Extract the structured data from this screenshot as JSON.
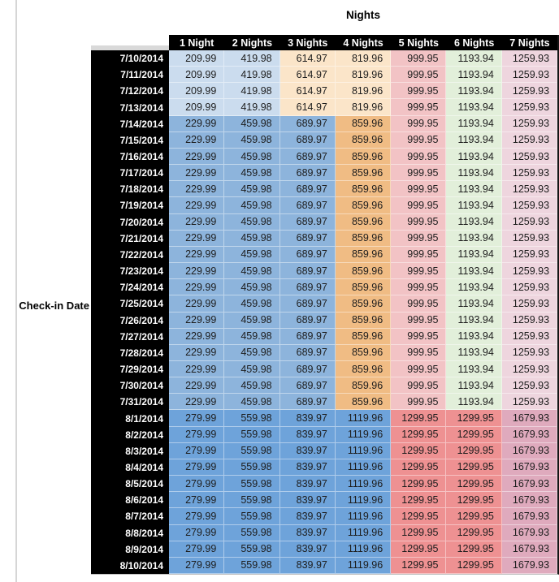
{
  "chart_data": {
    "type": "table",
    "title": "Nights",
    "row_axis_label": "Check-in Date",
    "header_bg": "#000000",
    "header_text_color": "#ffffff",
    "columns": [
      "1 Night",
      "2 Nights",
      "3 Nights",
      "4 Nights",
      "5 Nights",
      "6 Nights",
      "7 Nights"
    ],
    "colors": {
      "paleBlue": "#cbdcee",
      "medBlue": "#8db4dc",
      "darkBlue": "#6ea3da",
      "paleOrange": "#fbe5c9",
      "medOrange": "#f0bc84",
      "palePink": "#f2c3c5",
      "paleGreen": "#e2efda",
      "paleMauve": "#eed5de",
      "medRed": "#ee9192",
      "medMauve": "#dfaabd"
    },
    "schemes": {
      "early_july": [
        "paleBlue",
        "paleBlue",
        "paleOrange",
        "paleOrange",
        "palePink",
        "paleGreen",
        "paleMauve"
      ],
      "mid_july": [
        "medBlue",
        "medBlue",
        "medBlue",
        "medOrange",
        "palePink",
        "paleGreen",
        "paleMauve"
      ],
      "august": [
        "darkBlue",
        "darkBlue",
        "darkBlue",
        "darkBlue",
        "medRed",
        "medRed",
        "medMauve"
      ]
    },
    "rows": [
      {
        "date": "7/10/2014",
        "scheme": "early_july",
        "values": [
          "209.99",
          "419.98",
          "614.97",
          "819.96",
          "999.95",
          "1193.94",
          "1259.93"
        ]
      },
      {
        "date": "7/11/2014",
        "scheme": "early_july",
        "values": [
          "209.99",
          "419.98",
          "614.97",
          "819.96",
          "999.95",
          "1193.94",
          "1259.93"
        ]
      },
      {
        "date": "7/12/2014",
        "scheme": "early_july",
        "values": [
          "209.99",
          "419.98",
          "614.97",
          "819.96",
          "999.95",
          "1193.94",
          "1259.93"
        ]
      },
      {
        "date": "7/13/2014",
        "scheme": "early_july",
        "values": [
          "209.99",
          "419.98",
          "614.97",
          "819.96",
          "999.95",
          "1193.94",
          "1259.93"
        ]
      },
      {
        "date": "7/14/2014",
        "scheme": "mid_july",
        "values": [
          "229.99",
          "459.98",
          "689.97",
          "859.96",
          "999.95",
          "1193.94",
          "1259.93"
        ]
      },
      {
        "date": "7/15/2014",
        "scheme": "mid_july",
        "values": [
          "229.99",
          "459.98",
          "689.97",
          "859.96",
          "999.95",
          "1193.94",
          "1259.93"
        ]
      },
      {
        "date": "7/16/2014",
        "scheme": "mid_july",
        "values": [
          "229.99",
          "459.98",
          "689.97",
          "859.96",
          "999.95",
          "1193.94",
          "1259.93"
        ]
      },
      {
        "date": "7/17/2014",
        "scheme": "mid_july",
        "values": [
          "229.99",
          "459.98",
          "689.97",
          "859.96",
          "999.95",
          "1193.94",
          "1259.93"
        ]
      },
      {
        "date": "7/18/2014",
        "scheme": "mid_july",
        "values": [
          "229.99",
          "459.98",
          "689.97",
          "859.96",
          "999.95",
          "1193.94",
          "1259.93"
        ]
      },
      {
        "date": "7/19/2014",
        "scheme": "mid_july",
        "values": [
          "229.99",
          "459.98",
          "689.97",
          "859.96",
          "999.95",
          "1193.94",
          "1259.93"
        ]
      },
      {
        "date": "7/20/2014",
        "scheme": "mid_july",
        "values": [
          "229.99",
          "459.98",
          "689.97",
          "859.96",
          "999.95",
          "1193.94",
          "1259.93"
        ]
      },
      {
        "date": "7/21/2014",
        "scheme": "mid_july",
        "values": [
          "229.99",
          "459.98",
          "689.97",
          "859.96",
          "999.95",
          "1193.94",
          "1259.93"
        ]
      },
      {
        "date": "7/22/2014",
        "scheme": "mid_july",
        "values": [
          "229.99",
          "459.98",
          "689.97",
          "859.96",
          "999.95",
          "1193.94",
          "1259.93"
        ]
      },
      {
        "date": "7/23/2014",
        "scheme": "mid_july",
        "values": [
          "229.99",
          "459.98",
          "689.97",
          "859.96",
          "999.95",
          "1193.94",
          "1259.93"
        ]
      },
      {
        "date": "7/24/2014",
        "scheme": "mid_july",
        "values": [
          "229.99",
          "459.98",
          "689.97",
          "859.96",
          "999.95",
          "1193.94",
          "1259.93"
        ]
      },
      {
        "date": "7/25/2014",
        "scheme": "mid_july",
        "values": [
          "229.99",
          "459.98",
          "689.97",
          "859.96",
          "999.95",
          "1193.94",
          "1259.93"
        ]
      },
      {
        "date": "7/26/2014",
        "scheme": "mid_july",
        "values": [
          "229.99",
          "459.98",
          "689.97",
          "859.96",
          "999.95",
          "1193.94",
          "1259.93"
        ]
      },
      {
        "date": "7/27/2014",
        "scheme": "mid_july",
        "values": [
          "229.99",
          "459.98",
          "689.97",
          "859.96",
          "999.95",
          "1193.94",
          "1259.93"
        ]
      },
      {
        "date": "7/28/2014",
        "scheme": "mid_july",
        "values": [
          "229.99",
          "459.98",
          "689.97",
          "859.96",
          "999.95",
          "1193.94",
          "1259.93"
        ]
      },
      {
        "date": "7/29/2014",
        "scheme": "mid_july",
        "values": [
          "229.99",
          "459.98",
          "689.97",
          "859.96",
          "999.95",
          "1193.94",
          "1259.93"
        ]
      },
      {
        "date": "7/30/2014",
        "scheme": "mid_july",
        "values": [
          "229.99",
          "459.98",
          "689.97",
          "859.96",
          "999.95",
          "1193.94",
          "1259.93"
        ]
      },
      {
        "date": "7/31/2014",
        "scheme": "mid_july",
        "values": [
          "229.99",
          "459.98",
          "689.97",
          "859.96",
          "999.95",
          "1193.94",
          "1259.93"
        ]
      },
      {
        "date": "8/1/2014",
        "scheme": "august",
        "values": [
          "279.99",
          "559.98",
          "839.97",
          "1119.96",
          "1299.95",
          "1299.95",
          "1679.93"
        ]
      },
      {
        "date": "8/2/2014",
        "scheme": "august",
        "values": [
          "279.99",
          "559.98",
          "839.97",
          "1119.96",
          "1299.95",
          "1299.95",
          "1679.93"
        ]
      },
      {
        "date": "8/3/2014",
        "scheme": "august",
        "values": [
          "279.99",
          "559.98",
          "839.97",
          "1119.96",
          "1299.95",
          "1299.95",
          "1679.93"
        ]
      },
      {
        "date": "8/4/2014",
        "scheme": "august",
        "values": [
          "279.99",
          "559.98",
          "839.97",
          "1119.96",
          "1299.95",
          "1299.95",
          "1679.93"
        ]
      },
      {
        "date": "8/5/2014",
        "scheme": "august",
        "values": [
          "279.99",
          "559.98",
          "839.97",
          "1119.96",
          "1299.95",
          "1299.95",
          "1679.93"
        ]
      },
      {
        "date": "8/6/2014",
        "scheme": "august",
        "values": [
          "279.99",
          "559.98",
          "839.97",
          "1119.96",
          "1299.95",
          "1299.95",
          "1679.93"
        ]
      },
      {
        "date": "8/7/2014",
        "scheme": "august",
        "values": [
          "279.99",
          "559.98",
          "839.97",
          "1119.96",
          "1299.95",
          "1299.95",
          "1679.93"
        ]
      },
      {
        "date": "8/8/2014",
        "scheme": "august",
        "values": [
          "279.99",
          "559.98",
          "839.97",
          "1119.96",
          "1299.95",
          "1299.95",
          "1679.93"
        ]
      },
      {
        "date": "8/9/2014",
        "scheme": "august",
        "values": [
          "279.99",
          "559.98",
          "839.97",
          "1119.96",
          "1299.95",
          "1299.95",
          "1679.93"
        ]
      },
      {
        "date": "8/10/2014",
        "scheme": "august",
        "values": [
          "279.99",
          "559.98",
          "839.97",
          "1119.96",
          "1299.95",
          "1299.95",
          "1679.93"
        ]
      }
    ]
  }
}
